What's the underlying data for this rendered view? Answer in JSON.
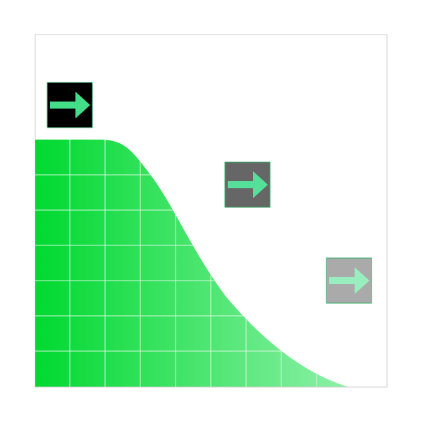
{
  "colors": {
    "background": "#ffffff",
    "frame_border": "#cccccc",
    "gradient_start": "#00d930",
    "gradient_end": "#8ef0a8",
    "grid_line": "#d6f8dd",
    "arrow": "#44dd88",
    "arrow_light": "#88eebb",
    "arrow_border": "#33aa66"
  },
  "diagram": {
    "arrows": [
      {
        "name": "dark-arrow-tile",
        "icon": "arrow-right-icon",
        "tile_color": "#000000",
        "arrow_color": "#44dd88"
      },
      {
        "name": "gray-arrow-tile",
        "icon": "arrow-right-icon",
        "tile_color": "#666666",
        "arrow_color": "#55e09a"
      },
      {
        "name": "light-arrow-tile",
        "icon": "arrow-right-icon",
        "tile_color": "#aaaaaa",
        "arrow_color": "#99eec0"
      }
    ]
  }
}
